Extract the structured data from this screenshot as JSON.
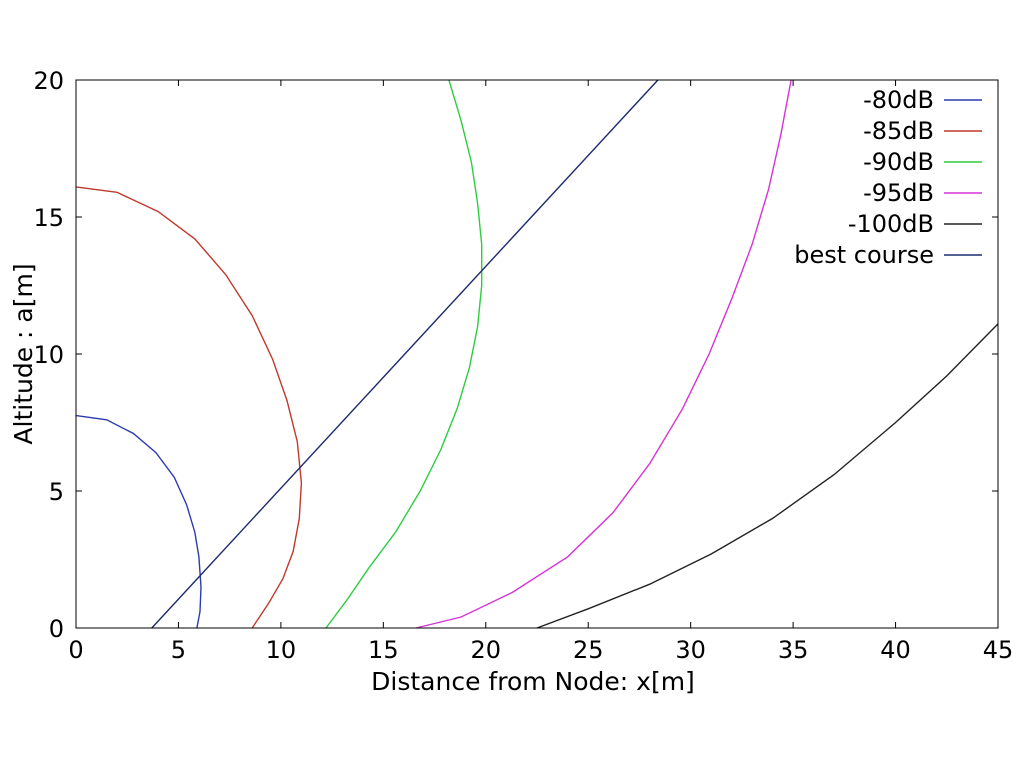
{
  "chart_data": {
    "type": "line",
    "title": "",
    "xlabel": "Distance from Node: x[m]",
    "ylabel": "Altitude : a[m]",
    "xlim": [
      0,
      45
    ],
    "ylim": [
      0,
      20
    ],
    "x_ticks": [
      "0",
      "5",
      "10",
      "15",
      "20",
      "25",
      "30",
      "35",
      "40",
      "45"
    ],
    "y_ticks": [
      "0",
      "5",
      "10",
      "15",
      "20"
    ],
    "grid": false,
    "legend_position": "top-right",
    "series": [
      {
        "name": "-80dB",
        "color": "#2b3bb0",
        "points": [
          [
            0,
            7.75
          ],
          [
            1.5,
            7.6
          ],
          [
            2.8,
            7.1
          ],
          [
            3.9,
            6.4
          ],
          [
            4.8,
            5.5
          ],
          [
            5.4,
            4.5
          ],
          [
            5.8,
            3.5
          ],
          [
            6.0,
            2.6
          ],
          [
            6.1,
            1.5
          ],
          [
            6.05,
            0.6
          ],
          [
            5.9,
            0
          ]
        ]
      },
      {
        "name": "-85dB",
        "color": "#c0392b",
        "points": [
          [
            0,
            16.1
          ],
          [
            2,
            15.9
          ],
          [
            4,
            15.2
          ],
          [
            5.8,
            14.2
          ],
          [
            7.3,
            12.9
          ],
          [
            8.6,
            11.4
          ],
          [
            9.6,
            9.8
          ],
          [
            10.3,
            8.3
          ],
          [
            10.8,
            6.8
          ],
          [
            11.0,
            5.3
          ],
          [
            10.9,
            4.0
          ],
          [
            10.6,
            2.8
          ],
          [
            10.1,
            1.8
          ],
          [
            9.4,
            0.9
          ],
          [
            8.6,
            0
          ]
        ]
      },
      {
        "name": "-90dB",
        "color": "#2ecc40",
        "points": [
          [
            18.2,
            20
          ],
          [
            18.8,
            18.5
          ],
          [
            19.3,
            17.0
          ],
          [
            19.6,
            15.5
          ],
          [
            19.8,
            14.0
          ],
          [
            19.8,
            12.5
          ],
          [
            19.6,
            11.0
          ],
          [
            19.2,
            9.5
          ],
          [
            18.6,
            8.0
          ],
          [
            17.8,
            6.5
          ],
          [
            16.8,
            5.0
          ],
          [
            15.6,
            3.5
          ],
          [
            14.3,
            2.2
          ],
          [
            13.2,
            1.0
          ],
          [
            12.2,
            0
          ]
        ]
      },
      {
        "name": "-95dB",
        "color": "#d633d6",
        "points": [
          [
            34.9,
            20
          ],
          [
            34.4,
            18
          ],
          [
            33.8,
            16
          ],
          [
            33.0,
            14
          ],
          [
            32.0,
            12
          ],
          [
            30.9,
            10
          ],
          [
            29.6,
            8
          ],
          [
            28.0,
            6
          ],
          [
            26.2,
            4.2
          ],
          [
            24.0,
            2.6
          ],
          [
            21.3,
            1.3
          ],
          [
            18.8,
            0.4
          ],
          [
            16.6,
            0
          ]
        ]
      },
      {
        "name": "-100dB",
        "color": "#222222",
        "points": [
          [
            22.5,
            0
          ],
          [
            25,
            0.7
          ],
          [
            28,
            1.6
          ],
          [
            31,
            2.7
          ],
          [
            34,
            4.0
          ],
          [
            37,
            5.6
          ],
          [
            40,
            7.5
          ],
          [
            42.5,
            9.2
          ],
          [
            45,
            11.1
          ]
        ]
      },
      {
        "name": "best course",
        "color": "#1c2a6e",
        "points": [
          [
            3.7,
            0
          ],
          [
            28.4,
            20
          ]
        ]
      }
    ]
  }
}
